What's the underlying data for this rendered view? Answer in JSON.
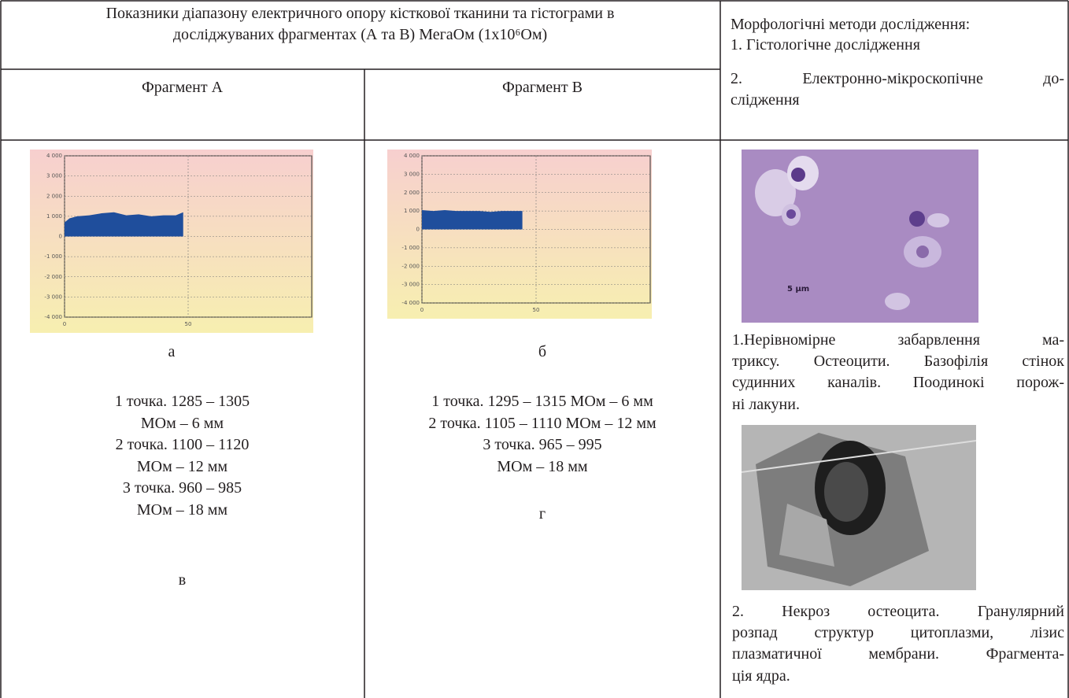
{
  "table": {
    "header": {
      "title": [
        "Показники діапазону електричного опору кісткової тканини та гістограми в",
        "досліджуваних фрагментах (А та В) МегаОм (1х10⁶Ом)"
      ],
      "fragment_a": "Фрагмент А",
      "fragment_b": "Фрагмент В",
      "methods": [
        "Морфологічні методи дослідження:",
        "1. Гістологічне дослідження",
        "2. Електронно-мікроскопічне до-",
        "слідження"
      ]
    },
    "fragment_a": {
      "chart": {
        "type": "area",
        "color": "#1f4e9c",
        "ylim": [
          -4000,
          4000
        ],
        "yticks": [
          {
            "value": 4000,
            "label": "4 000"
          },
          {
            "value": 3000,
            "label": "3 000"
          },
          {
            "value": 2000,
            "label": "2 000"
          },
          {
            "value": 1000,
            "label": "1 000"
          },
          0,
          {
            "value": -1000,
            "label": "-1 000"
          },
          {
            "value": -2000,
            "label": "-2 000"
          },
          {
            "value": -3000,
            "label": "-3 000"
          },
          {
            "value": -4000,
            "label": "-4 000"
          }
        ],
        "xlim": [
          0,
          100
        ],
        "xticks": [
          0,
          50
        ],
        "x": [
          0,
          2,
          5,
          10,
          15,
          20,
          25,
          30,
          35,
          40,
          45,
          48
        ],
        "values": [
          700,
          900,
          1000,
          1050,
          1150,
          1200,
          1050,
          1100,
          1000,
          1050,
          1050,
          1200
        ]
      },
      "chart_label": "а",
      "lines": [
        "1 точка. 1285 – 1305",
        "МОм – 6 мм",
        "2 точка. 1100 – 1120",
        "МОм – 12 мм",
        "3 точка. 960 – 985",
        "МОм – 18 мм"
      ],
      "label": "в"
    },
    "fragment_b": {
      "chart": {
        "type": "area",
        "color": "#1f4e9c",
        "ylim": [
          -4000,
          4000
        ],
        "yticks": [
          {
            "value": 4000,
            "label": "4 000"
          },
          {
            "value": 3000,
            "label": "3 000"
          },
          {
            "value": 2000,
            "label": "2 000"
          },
          {
            "value": 1000,
            "label": "1 000"
          },
          0,
          {
            "value": -1000,
            "label": "-1 000"
          },
          {
            "value": -2000,
            "label": "-2 000"
          },
          {
            "value": -3000,
            "label": "-3 000"
          },
          {
            "value": -4000,
            "label": "-4 000"
          }
        ],
        "xlim": [
          0,
          100
        ],
        "xticks": [
          0,
          50
        ],
        "x": [
          0,
          5,
          10,
          15,
          20,
          25,
          30,
          35,
          40,
          44
        ],
        "values": [
          1050,
          1000,
          1050,
          1000,
          1000,
          1000,
          950,
          1000,
          1000,
          1000
        ]
      },
      "chart_label": "б",
      "lines": [
        "1 точка. 1295 – 1315 МОм – 6 мм",
        "2 точка. 1105 – 1110 МОм – 12 мм",
        "3 точка. 965 – 995",
        "МОм – 18 мм"
      ],
      "label": "г"
    },
    "morphology": {
      "scale": "5 μm",
      "caption1": [
        " 1.Нерівномірне забарвлення ма-",
        "триксу. Остеоцити. Базофілія стінок",
        "судинних каналів. Поодинокі порож-",
        "ні лакуни."
      ],
      "caption2": [
        " 2. Некроз остеоцита. Гранулярний",
        "розпад структур цитоплазми, лізис",
        "плазматичної мембрани. Фрагмента-",
        "ція ядра."
      ]
    }
  }
}
